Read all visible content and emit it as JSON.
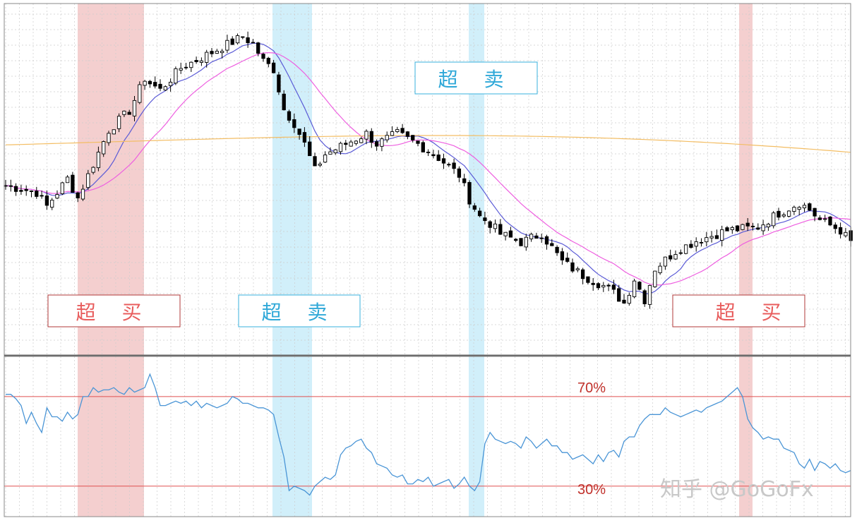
{
  "chart_data": {
    "type": "candlestick",
    "colors": {
      "overbought_band": "#f2c7c7",
      "oversold_band": "#c9ecf9",
      "overbought_label": "#e85d5d",
      "overbought_border": "#b03a3a",
      "oversold_label": "#2fa8d8",
      "oversold_border": "#3ab0dc",
      "ma_fast": "#5a5ad6",
      "ma_mid": "#ee5fe0",
      "ma_slow": "#f3bd63",
      "rsi_line": "#4a95d6",
      "level_line": "#e05050",
      "level_text": "#c0302a",
      "candle": "#000000",
      "grid": "#cccccc",
      "watermark": "#c8c8c8"
    },
    "annotations": [
      {
        "label": "超 买",
        "kind": "overbought"
      },
      {
        "label": "超 卖",
        "kind": "oversold"
      },
      {
        "label": "超 卖",
        "kind": "oversold"
      },
      {
        "label": "超 买",
        "kind": "overbought"
      }
    ],
    "rsi": {
      "levels": [
        70,
        30
      ],
      "level_labels": [
        "70%",
        "30%"
      ],
      "values": [
        71,
        71,
        69,
        66,
        58,
        63,
        58,
        54,
        65,
        61,
        61,
        59,
        63,
        60,
        62,
        70,
        70,
        74,
        72,
        73,
        73,
        74,
        72,
        71,
        74,
        72,
        73,
        74,
        80,
        74,
        66,
        66,
        67,
        68,
        67,
        68,
        66,
        68,
        65,
        67,
        66,
        65,
        66,
        67,
        70,
        69,
        67,
        67,
        66,
        65,
        65,
        64,
        62,
        52,
        43,
        28,
        30,
        29,
        28,
        26,
        30,
        32,
        34,
        33,
        35,
        44,
        47,
        48,
        50,
        51,
        47,
        45,
        40,
        39,
        38,
        35,
        34,
        35,
        31,
        31,
        33,
        32,
        34,
        30,
        31,
        32,
        33,
        29,
        31,
        34,
        30,
        28,
        32,
        49,
        54,
        51,
        50,
        49,
        50,
        49,
        47,
        52,
        50,
        47,
        49,
        51,
        48,
        48,
        45,
        45,
        42,
        43,
        44,
        42,
        40,
        44,
        41,
        45,
        46,
        43,
        50,
        52,
        52,
        57,
        60,
        62,
        62,
        62,
        65,
        63,
        62,
        61,
        62,
        63,
        64,
        63,
        65,
        66,
        67,
        68,
        70,
        72,
        74,
        70,
        60,
        56,
        54,
        51,
        52,
        51,
        51,
        47,
        46,
        45,
        40,
        38,
        42,
        37,
        41,
        40,
        38,
        40,
        37,
        36,
        37
      ]
    },
    "watermark": "知乎 @GoGoFx"
  }
}
